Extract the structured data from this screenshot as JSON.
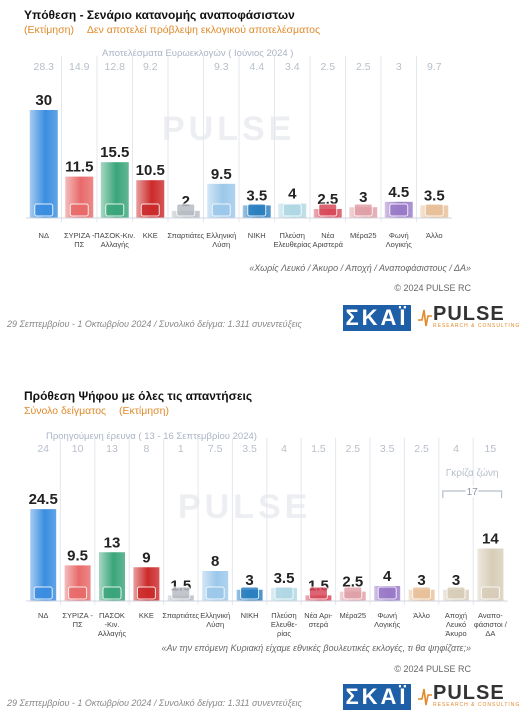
{
  "panel1": {
    "title": "Υπόθεση - Σενάριο κατανομής αναποφάσιστων",
    "subtitle_main": "(Εκτίμηση)",
    "subtitle_note": "Δεν αποτελεί πρόβλεψη εκλογικού αποτελέσματος",
    "prev_caption": "Αποτελέσματα Ευρωεκλογών  ( Ιούνιος 2024 )",
    "footnote": "«Χωρίς Λευκό / Άκυρο / Αποχή / Αναποφάσιστους / ΔΑ»",
    "copyright": "© 2024 PULSE RC",
    "fieldwork": "29 Σεπτεμβρίου - 1 Οκτωβρίου 2024  /  Συνολικό δείγμα:  1.311 συνεντεύξεις"
  },
  "panel2": {
    "title": "Πρόθεση Ψήφου με όλες τις απαντήσεις",
    "subtitle_main": "Σύνολο δείγματος",
    "subtitle_note": "(Εκτίμηση)",
    "prev_caption": "Προηγούμενη έρευνα ( 13 - 16 Σεπτεμβρίου 2024)",
    "grey_zone_label": "Γκρίζα ζώνη",
    "grey_zone_value": "17",
    "footnote": "«Αν την επόμενη Κυριακή είχαμε εθνικές βουλευτικές εκλογές, τι θα ψηφίζατε;»",
    "copyright": "© 2024 PULSE RC",
    "fieldwork": "29 Σεπτεμβρίου - 1 Οκτωβρίου 2024  /  Συνολικό δείγμα:  1.311 συνεντεύξεις"
  },
  "logos": {
    "skai": "ΣΚΑΪ",
    "pulse": "PULSE",
    "pulse_sub": "RESEARCH & CONSULTING",
    "watermark": "PULSE"
  },
  "colors": {
    "ND": "#3a8de0",
    "SYRIZA": "#e86a6a",
    "PASOK": "#3aa57a",
    "KKE": "#cc2a2a",
    "SPARTIATES": "#b8bcc4",
    "ELLINIKI": "#9cc8ea",
    "NIKI": "#2a7fc0",
    "PLEFSI": "#b0d8e4",
    "NEA_ARISTERA": "#d84a5a",
    "MERA25": "#e0a0a8",
    "FONI": "#9a7ac8",
    "ALLO": "#e8c09a",
    "GREY": "#d8cdb8",
    "prev_value": "#b7bfca",
    "accent": "#e08a2a"
  },
  "chart_data": [
    {
      "type": "bar",
      "categories": [
        "ΝΔ",
        "ΣΥΡΙΖΑ - ΠΣ",
        "ΠΑΣΟΚ-Κιν. Αλλαγής",
        "ΚΚΕ",
        "Σπαρτιάτες",
        "Ελληνική Λύση",
        "ΝΙΚΗ",
        "Πλεύση Ελευθερίας",
        "Νέα Αριστερά",
        "Μέρα25",
        "Φωνή Λογικής",
        "Άλλο"
      ],
      "series": [
        {
          "name": "",
          "values": [
            30,
            11.5,
            15.5,
            10.5,
            2,
            9.5,
            3.5,
            4,
            2.5,
            3,
            4.5,
            3.5
          ]
        },
        {
          "name": "Αποτελέσματα Ευρωεκλογών ( Ιούνιος 2024 )",
          "values": [
            28.3,
            14.9,
            12.8,
            9.2,
            null,
            9.3,
            4.4,
            3.4,
            2.5,
            2.5,
            3,
            9.7
          ]
        }
      ]
    },
    {
      "type": "bar",
      "categories": [
        "ΝΔ",
        "ΣΥΡΙΖΑ - ΠΣ",
        "ΠΑΣΟΚ -Κιν. Αλλαγής",
        "ΚΚΕ",
        "Σπαρτιάτες",
        "Ελληνική Λύση",
        "ΝΙΚΗ",
        "Πλεύση Ελευθε- ρίας",
        "Νέα Αρι- στερά",
        "Μέρα25",
        "Φωνή Λογικής",
        "Άλλο",
        "Αποχή Λευκό Άκυρο",
        "Αναπο- φάσιστοι / ΔΑ"
      ],
      "series": [
        {
          "name": "",
          "values": [
            24.5,
            9.5,
            13,
            9,
            1.5,
            8,
            3,
            3.5,
            1.5,
            2.5,
            4,
            3,
            3,
            14
          ]
        },
        {
          "name": "Προηγούμενη έρευνα ( 13 - 16 Σεπτεμβρίου 2024)",
          "values": [
            24,
            10,
            13,
            8,
            1,
            7.5,
            3.5,
            4,
            1.5,
            2.5,
            3.5,
            2.5,
            4,
            15
          ]
        }
      ]
    }
  ]
}
